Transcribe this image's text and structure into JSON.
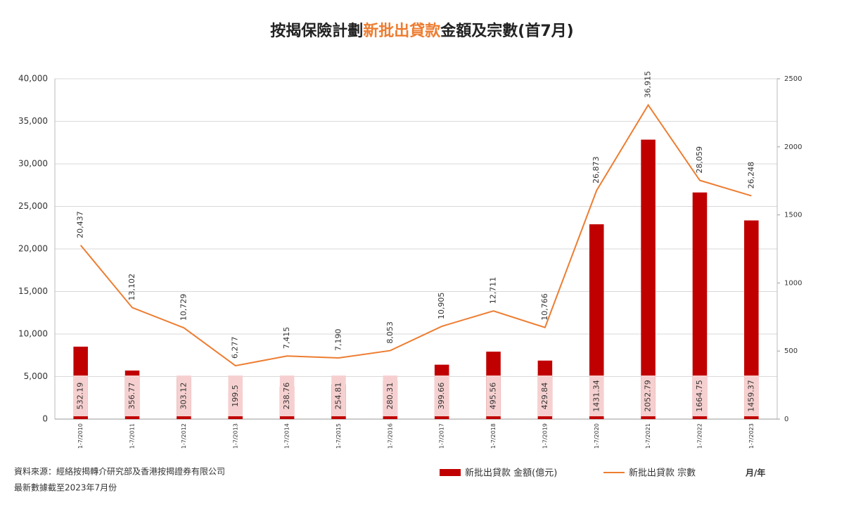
{
  "chart_data": {
    "type": "bar",
    "title_parts": [
      {
        "text": "按揭保險計劃",
        "color": "#222222"
      },
      {
        "text": "新批出貸款",
        "color": "#ed7d31"
      },
      {
        "text": "金額及宗數(首7月)",
        "color": "#222222"
      }
    ],
    "categories": [
      "1-7/2010",
      "1-7/2011",
      "1-7/2012",
      "1-7/2013",
      "1-7/2014",
      "1-7/2015",
      "1-7/2016",
      "1-7/2017",
      "1-7/2018",
      "1-7/2019",
      "1-7/2020",
      "1-7/2021",
      "1-7/2022",
      "1-7/2023"
    ],
    "series": [
      {
        "name": "新批出貸款 金額(億元)",
        "type": "bar",
        "axis": "y2",
        "color": "#c00000",
        "values": [
          532.19,
          356.77,
          303.12,
          199.5,
          238.76,
          254.81,
          280.31,
          399.66,
          495.56,
          429.84,
          1431.34,
          2052.79,
          1664.75,
          1459.37
        ]
      },
      {
        "name": "新批出貸款 宗數",
        "type": "line",
        "color": "#ed7d31",
        "values": [
          20437,
          13102,
          10729,
          6277,
          7415,
          7190,
          8053,
          10905,
          12711,
          10766,
          26873,
          36915,
          28059,
          26248
        ],
        "value_labels": [
          "20,437",
          "13,102",
          "10,729",
          "6,277",
          "7,415",
          "7,190",
          "8,053",
          "10,905",
          "12,711",
          "10,766",
          "26,873",
          "36,915",
          "28,059",
          "26,248"
        ]
      }
    ],
    "ylim": [
      0,
      40000
    ],
    "yticks": [
      0,
      {
        "value": 5000,
        "label": "5,000"
      },
      {
        "value": 10000,
        "label": "10,000"
      },
      {
        "value": 15000,
        "label": "15,000"
      },
      {
        "value": 20000,
        "label": "20,000"
      },
      {
        "value": 25000,
        "label": "25,000"
      },
      {
        "value": 30000,
        "label": "30,000"
      },
      {
        "value": 35000,
        "label": "35,000"
      },
      {
        "value": 40000,
        "label": "40,000"
      }
    ],
    "y2lim": [
      0,
      2500
    ],
    "y2ticks": [
      0,
      500,
      1000,
      1500,
      2000,
      2500
    ],
    "grid": true,
    "x_axis_label": "月/年",
    "source": "資料來源：經絡按揭轉介研究部及香港按揭證券有限公司",
    "note": "最新數據截至2023年7月份"
  }
}
